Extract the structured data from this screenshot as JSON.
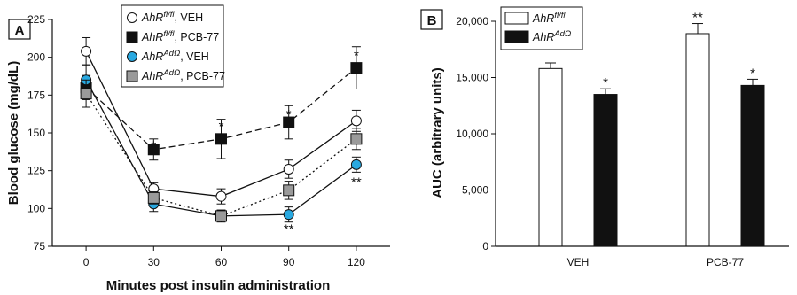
{
  "chart_data": [
    {
      "panel": "A",
      "type": "line",
      "xlabel": "Minutes post insulin administration",
      "ylabel": "Blood glucose (mg/dL)",
      "x": [
        0,
        30,
        60,
        90,
        120
      ],
      "xticks": [
        "0",
        "30",
        "60",
        "90",
        "120"
      ],
      "ylim": [
        75,
        225
      ],
      "yticks": [
        "75",
        "100",
        "125",
        "150",
        "175",
        "200",
        "225"
      ],
      "yticks_values": [
        75,
        100,
        125,
        150,
        175,
        200,
        225
      ],
      "legend_position": "top",
      "series": [
        {
          "name_base": "AhR",
          "name_sup": "fl/fl",
          "name_suffix": ", VEH",
          "values": [
            204,
            113,
            108,
            126,
            158
          ],
          "err": [
            9,
            4,
            5,
            6,
            7
          ],
          "marker": "circle",
          "fill": "#ffffff",
          "line": "solid"
        },
        {
          "name_base": "AhR",
          "name_sup": "fl/fl",
          "name_suffix": ", PCB-77",
          "values": [
            180,
            139,
            146,
            157,
            193
          ],
          "err": [
            8,
            7,
            13,
            11,
            14
          ],
          "marker": "square",
          "fill": "#111111",
          "line": "dashed"
        },
        {
          "name_base": "AhR",
          "name_sup": "AdΩ",
          "name_suffix": ", VEH",
          "values": [
            185,
            103,
            95,
            96,
            129
          ],
          "err": [
            10,
            5,
            4,
            5,
            5
          ],
          "marker": "circle",
          "fill": "#29a9e1",
          "line": "solid"
        },
        {
          "name_base": "AhR",
          "name_sup": "AdΩ",
          "name_suffix": ", PCB-77",
          "values": [
            176,
            107,
            95,
            112,
            146
          ],
          "err": [
            9,
            4,
            3,
            6,
            7
          ],
          "marker": "square",
          "fill": "#9a9a9a",
          "line": "dotted"
        }
      ],
      "annotations": [
        {
          "x": 30,
          "y": 142,
          "text": "*"
        },
        {
          "x": 60,
          "y": 155,
          "text": "*"
        },
        {
          "x": 90,
          "y": 163,
          "text": "*"
        },
        {
          "x": 120,
          "y": 202,
          "text": "*"
        },
        {
          "x": 90,
          "y": 87,
          "text": "**"
        },
        {
          "x": 120,
          "y": 118,
          "text": "**"
        }
      ]
    },
    {
      "panel": "B",
      "type": "bar",
      "ylabel": "AUC (arbitrary units)",
      "categories": [
        "VEH",
        "PCB-77"
      ],
      "ylim": [
        0,
        20000
      ],
      "yticks": [
        "0",
        "5,000",
        "10,000",
        "15,000",
        "20,000"
      ],
      "yticks_values": [
        0,
        5000,
        10000,
        15000,
        20000
      ],
      "legend_position": "top-left",
      "series": [
        {
          "name_base": "AhR",
          "name_sup": "fl/fl",
          "fill": "#ffffff",
          "values": [
            15800,
            18900
          ],
          "err": [
            500,
            900
          ]
        },
        {
          "name_base": "AhR",
          "name_sup": "AdΩ",
          "fill": "#111111",
          "values": [
            13500,
            14300
          ],
          "err": [
            500,
            550
          ]
        }
      ],
      "annotations": [
        {
          "category": 0,
          "series": 1,
          "text": "*"
        },
        {
          "category": 1,
          "series": 0,
          "text": "**"
        },
        {
          "category": 1,
          "series": 1,
          "text": "*"
        }
      ]
    }
  ]
}
